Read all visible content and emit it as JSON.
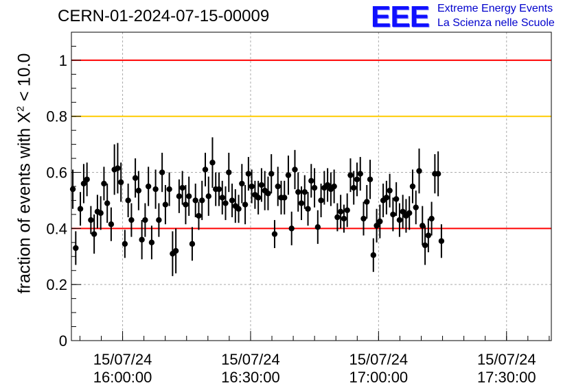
{
  "header": {
    "run_id": "CERN-01-2024-07-15-00009"
  },
  "logo": {
    "mark": "EEE",
    "line1": "Extreme Energy Events",
    "line2": "La Scienza nelle Scuole"
  },
  "axis": {
    "ylabel_pre": "fraction of events with X",
    "ylabel_sup": "2",
    "ylabel_post": " < 10.0"
  },
  "colors": {
    "threshold_red": "#ff0000",
    "threshold_orange": "#ffcc00",
    "marker": "#000000",
    "grid": "#aaaaaa",
    "logo_blue": "#1010ff"
  },
  "chart_data": {
    "type": "scatter",
    "title": "CERN-01-2024-07-15-00009",
    "ylabel": "fraction of events with X^2 < 10.0",
    "x_unit": "time (2024-07-15)",
    "xlim": [
      "15:48:00",
      "17:40:30"
    ],
    "ylim": [
      0,
      1.1
    ],
    "grid": true,
    "x_ticks": [
      {
        "date": "15/07/24",
        "time": "16:00:00",
        "value": "16:00:00"
      },
      {
        "date": "15/07/24",
        "time": "16:30:00",
        "value": "16:30:00"
      },
      {
        "date": "15/07/24",
        "time": "17:00:00",
        "value": "17:00:00"
      },
      {
        "date": "15/07/24",
        "time": "17:30:00",
        "value": "17:30:00"
      }
    ],
    "y_ticks": [
      {
        "value": 0,
        "label": "0"
      },
      {
        "value": 0.2,
        "label": "0.2"
      },
      {
        "value": 0.4,
        "label": "0.4"
      },
      {
        "value": 0.6,
        "label": "0.6"
      },
      {
        "value": 0.8,
        "label": "0.8"
      },
      {
        "value": 1,
        "label": "1"
      }
    ],
    "reference_lines": [
      {
        "y": 1.0,
        "color": "#ff0000"
      },
      {
        "y": 0.8,
        "color": "#ffcc00"
      },
      {
        "y": 0.4,
        "color": "#ff0000"
      }
    ],
    "series": [
      {
        "points": [
          {
            "x": "15:48:20",
            "y": 0.54,
            "err": 0.07
          },
          {
            "x": "15:49:01",
            "y": 0.33,
            "err": 0.06
          },
          {
            "x": "15:50:06",
            "y": 0.47,
            "err": 0.06
          },
          {
            "x": "15:50:53",
            "y": 0.56,
            "err": 0.07
          },
          {
            "x": "15:51:39",
            "y": 0.575,
            "err": 0.06
          },
          {
            "x": "15:52:34",
            "y": 0.43,
            "err": 0.05
          },
          {
            "x": "15:53:20",
            "y": 0.38,
            "err": 0.07
          },
          {
            "x": "15:54:06",
            "y": 0.46,
            "err": 0.06
          },
          {
            "x": "15:54:52",
            "y": 0.455,
            "err": 0.06
          },
          {
            "x": "15:55:38",
            "y": 0.56,
            "err": 0.06
          },
          {
            "x": "15:56:24",
            "y": 0.49,
            "err": 0.07
          },
          {
            "x": "15:57:19",
            "y": 0.415,
            "err": 0.06
          },
          {
            "x": "15:58:05",
            "y": 0.61,
            "err": 0.09
          },
          {
            "x": "15:58:51",
            "y": 0.615,
            "err": 0.09
          },
          {
            "x": "15:59:37",
            "y": 0.565,
            "err": 0.07
          },
          {
            "x": "16:00:32",
            "y": 0.345,
            "err": 0.05
          },
          {
            "x": "16:01:18",
            "y": 0.5,
            "err": 0.06
          },
          {
            "x": "16:02:04",
            "y": 0.43,
            "err": 0.06
          },
          {
            "x": "16:02:59",
            "y": 0.58,
            "err": 0.07
          },
          {
            "x": "16:03:45",
            "y": 0.535,
            "err": 0.07
          },
          {
            "x": "16:04:31",
            "y": 0.36,
            "err": 0.07
          },
          {
            "x": "16:05:17",
            "y": 0.43,
            "err": 0.06
          },
          {
            "x": "16:06:03",
            "y": 0.55,
            "err": 0.07
          },
          {
            "x": "16:06:49",
            "y": 0.35,
            "err": 0.06
          },
          {
            "x": "16:07:44",
            "y": 0.54,
            "err": 0.07
          },
          {
            "x": "16:08:30",
            "y": 0.43,
            "err": 0.06
          },
          {
            "x": "16:09:16",
            "y": 0.6,
            "err": 0.07
          },
          {
            "x": "16:10:02",
            "y": 0.485,
            "err": 0.07
          },
          {
            "x": "16:10:57",
            "y": 0.54,
            "err": 0.06
          },
          {
            "x": "16:11:43",
            "y": 0.31,
            "err": 0.08
          },
          {
            "x": "16:12:29",
            "y": 0.32,
            "err": 0.08
          },
          {
            "x": "16:13:15",
            "y": 0.515,
            "err": 0.06
          },
          {
            "x": "16:14:01",
            "y": 0.545,
            "err": 0.06
          },
          {
            "x": "16:14:47",
            "y": 0.485,
            "err": 0.07
          },
          {
            "x": "16:15:33",
            "y": 0.515,
            "err": 0.07
          },
          {
            "x": "16:16:19",
            "y": 0.345,
            "err": 0.06
          },
          {
            "x": "16:17:05",
            "y": 0.5,
            "err": 0.06
          },
          {
            "x": "16:17:51",
            "y": 0.445,
            "err": 0.05
          },
          {
            "x": "16:18:37",
            "y": 0.5,
            "err": 0.07
          },
          {
            "x": "16:19:23",
            "y": 0.61,
            "err": 0.06
          },
          {
            "x": "16:20:09",
            "y": 0.515,
            "err": 0.07
          },
          {
            "x": "16:21:04",
            "y": 0.635,
            "err": 0.09
          },
          {
            "x": "16:21:50",
            "y": 0.54,
            "err": 0.06
          },
          {
            "x": "16:22:36",
            "y": 0.54,
            "err": 0.06
          },
          {
            "x": "16:23:22",
            "y": 0.51,
            "err": 0.06
          },
          {
            "x": "16:24:08",
            "y": 0.49,
            "err": 0.06
          },
          {
            "x": "16:24:54",
            "y": 0.6,
            "err": 0.07
          },
          {
            "x": "16:25:40",
            "y": 0.5,
            "err": 0.06
          },
          {
            "x": "16:26:26",
            "y": 0.48,
            "err": 0.06
          },
          {
            "x": "16:27:12",
            "y": 0.47,
            "err": 0.05
          },
          {
            "x": "16:27:58",
            "y": 0.56,
            "err": 0.07
          },
          {
            "x": "16:28:44",
            "y": 0.485,
            "err": 0.07
          },
          {
            "x": "16:29:30",
            "y": 0.595,
            "err": 0.06
          },
          {
            "x": "16:30:16",
            "y": 0.55,
            "err": 0.06
          },
          {
            "x": "16:31:02",
            "y": 0.52,
            "err": 0.05
          },
          {
            "x": "16:31:48",
            "y": 0.51,
            "err": 0.06
          },
          {
            "x": "16:32:34",
            "y": 0.555,
            "err": 0.06
          },
          {
            "x": "16:33:20",
            "y": 0.535,
            "err": 0.07
          },
          {
            "x": "16:34:06",
            "y": 0.525,
            "err": 0.06
          },
          {
            "x": "16:34:52",
            "y": 0.595,
            "err": 0.07
          },
          {
            "x": "16:35:38",
            "y": 0.38,
            "err": 0.05
          },
          {
            "x": "16:36:24",
            "y": 0.55,
            "err": 0.07
          },
          {
            "x": "16:37:10",
            "y": 0.51,
            "err": 0.06
          },
          {
            "x": "16:37:56",
            "y": 0.51,
            "err": 0.06
          },
          {
            "x": "16:38:51",
            "y": 0.59,
            "err": 0.07
          },
          {
            "x": "16:39:37",
            "y": 0.4,
            "err": 0.06
          },
          {
            "x": "16:40:23",
            "y": 0.61,
            "err": 0.07
          },
          {
            "x": "16:41:09",
            "y": 0.53,
            "err": 0.07
          },
          {
            "x": "16:41:55",
            "y": 0.49,
            "err": 0.06
          },
          {
            "x": "16:42:41",
            "y": 0.53,
            "err": 0.06
          },
          {
            "x": "16:43:27",
            "y": 0.47,
            "err": 0.06
          },
          {
            "x": "16:44:13",
            "y": 0.57,
            "err": 0.06
          },
          {
            "x": "16:44:59",
            "y": 0.545,
            "err": 0.07
          },
          {
            "x": "16:45:45",
            "y": 0.405,
            "err": 0.06
          },
          {
            "x": "16:46:31",
            "y": 0.5,
            "err": 0.06
          },
          {
            "x": "16:47:17",
            "y": 0.545,
            "err": 0.06
          },
          {
            "x": "16:48:03",
            "y": 0.555,
            "err": 0.06
          },
          {
            "x": "16:48:49",
            "y": 0.54,
            "err": 0.06
          },
          {
            "x": "16:49:35",
            "y": 0.55,
            "err": 0.06
          },
          {
            "x": "16:50:21",
            "y": 0.44,
            "err": 0.05
          },
          {
            "x": "16:51:07",
            "y": 0.46,
            "err": 0.06
          },
          {
            "x": "16:51:53",
            "y": 0.435,
            "err": 0.05
          },
          {
            "x": "16:52:39",
            "y": 0.465,
            "err": 0.06
          },
          {
            "x": "16:53:25",
            "y": 0.59,
            "err": 0.06
          },
          {
            "x": "16:54:11",
            "y": 0.545,
            "err": 0.06
          },
          {
            "x": "16:54:57",
            "y": 0.575,
            "err": 0.06
          },
          {
            "x": "16:55:43",
            "y": 0.595,
            "err": 0.06
          },
          {
            "x": "16:56:29",
            "y": 0.435,
            "err": 0.06
          },
          {
            "x": "16:57:15",
            "y": 0.495,
            "err": 0.06
          },
          {
            "x": "16:58:01",
            "y": 0.575,
            "err": 0.07
          },
          {
            "x": "16:58:47",
            "y": 0.305,
            "err": 0.06
          },
          {
            "x": "16:59:33",
            "y": 0.41,
            "err": 0.06
          },
          {
            "x": "17:00:19",
            "y": 0.425,
            "err": 0.06
          },
          {
            "x": "17:01:05",
            "y": 0.5,
            "err": 0.06
          },
          {
            "x": "17:01:51",
            "y": 0.51,
            "err": 0.06
          },
          {
            "x": "17:02:37",
            "y": 0.535,
            "err": 0.06
          },
          {
            "x": "17:03:23",
            "y": 0.45,
            "err": 0.06
          },
          {
            "x": "17:04:09",
            "y": 0.505,
            "err": 0.06
          },
          {
            "x": "17:04:55",
            "y": 0.43,
            "err": 0.06
          },
          {
            "x": "17:05:41",
            "y": 0.46,
            "err": 0.06
          },
          {
            "x": "17:06:27",
            "y": 0.445,
            "err": 0.06
          },
          {
            "x": "17:07:13",
            "y": 0.455,
            "err": 0.06
          },
          {
            "x": "17:07:59",
            "y": 0.55,
            "err": 0.06
          },
          {
            "x": "17:08:45",
            "y": 0.475,
            "err": 0.06
          },
          {
            "x": "17:09:31",
            "y": 0.605,
            "err": 0.08
          },
          {
            "x": "17:10:17",
            "y": 0.41,
            "err": 0.07
          },
          {
            "x": "17:10:54",
            "y": 0.34,
            "err": 0.07
          },
          {
            "x": "17:11:40",
            "y": 0.375,
            "err": 0.06
          },
          {
            "x": "17:12:26",
            "y": 0.435,
            "err": 0.06
          },
          {
            "x": "17:13:12",
            "y": 0.595,
            "err": 0.07
          },
          {
            "x": "17:13:58",
            "y": 0.595,
            "err": 0.08
          },
          {
            "x": "17:14:44",
            "y": 0.355,
            "err": 0.06
          }
        ]
      }
    ]
  }
}
